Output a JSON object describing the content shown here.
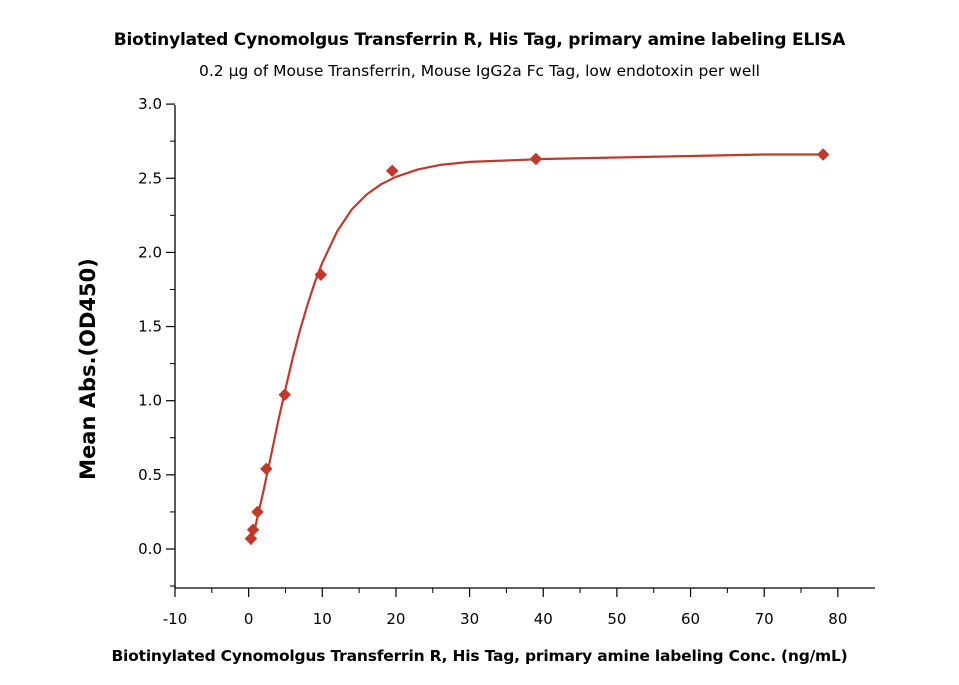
{
  "chart_data": {
    "type": "scatter",
    "title": "Biotinylated Cynomolgus Transferrin R, His Tag, primary amine labeling ELISA",
    "subtitle": "0.2 µg of Mouse Transferrin, Mouse IgG2a Fc Tag, low endotoxin per well",
    "xlabel": "Biotinylated Cynomolgus Transferrin R, His Tag, primary amine labeling Conc. (ng/mL)",
    "ylabel": "Mean Abs.(OD450)",
    "xlim": [
      -10,
      85
    ],
    "ylim": [
      -0.25,
      3.0
    ],
    "x_ticks": [
      -10,
      0,
      10,
      20,
      30,
      40,
      50,
      60,
      70,
      80
    ],
    "y_ticks": [
      0.0,
      0.5,
      1.0,
      1.5,
      2.0,
      2.5,
      3.0
    ],
    "x_tick_labels": [
      "-10",
      "0",
      "10",
      "20",
      "30",
      "40",
      "50",
      "60",
      "70",
      "80"
    ],
    "y_tick_labels": [
      "0.0",
      "0.5",
      "1.0",
      "1.5",
      "2.0",
      "2.5",
      "3.0"
    ],
    "marker": "diamond",
    "color": "#c0392b",
    "grid": false,
    "series": [
      {
        "points": [
          {
            "x": 0.3,
            "y": 0.07
          },
          {
            "x": 0.6,
            "y": 0.13
          },
          {
            "x": 1.2,
            "y": 0.25
          },
          {
            "x": 2.4,
            "y": 0.54
          },
          {
            "x": 4.9,
            "y": 1.04
          },
          {
            "x": 9.8,
            "y": 1.85
          },
          {
            "x": 19.5,
            "y": 2.55
          },
          {
            "x": 39.0,
            "y": 2.63
          },
          {
            "x": 78.0,
            "y": 2.66
          }
        ],
        "fit_curve": {
          "model": "sigmoidal",
          "x": [
            0.3,
            1,
            2,
            3,
            4,
            5,
            6,
            7,
            8,
            9,
            10,
            12,
            14,
            16,
            18,
            20,
            23,
            26,
            30,
            35,
            40,
            50,
            60,
            70,
            78
          ],
          "y": [
            0.03,
            0.17,
            0.39,
            0.62,
            0.86,
            1.08,
            1.29,
            1.48,
            1.65,
            1.8,
            1.93,
            2.14,
            2.29,
            2.39,
            2.46,
            2.51,
            2.56,
            2.59,
            2.61,
            2.62,
            2.63,
            2.64,
            2.65,
            2.66,
            2.66
          ]
        }
      }
    ]
  }
}
